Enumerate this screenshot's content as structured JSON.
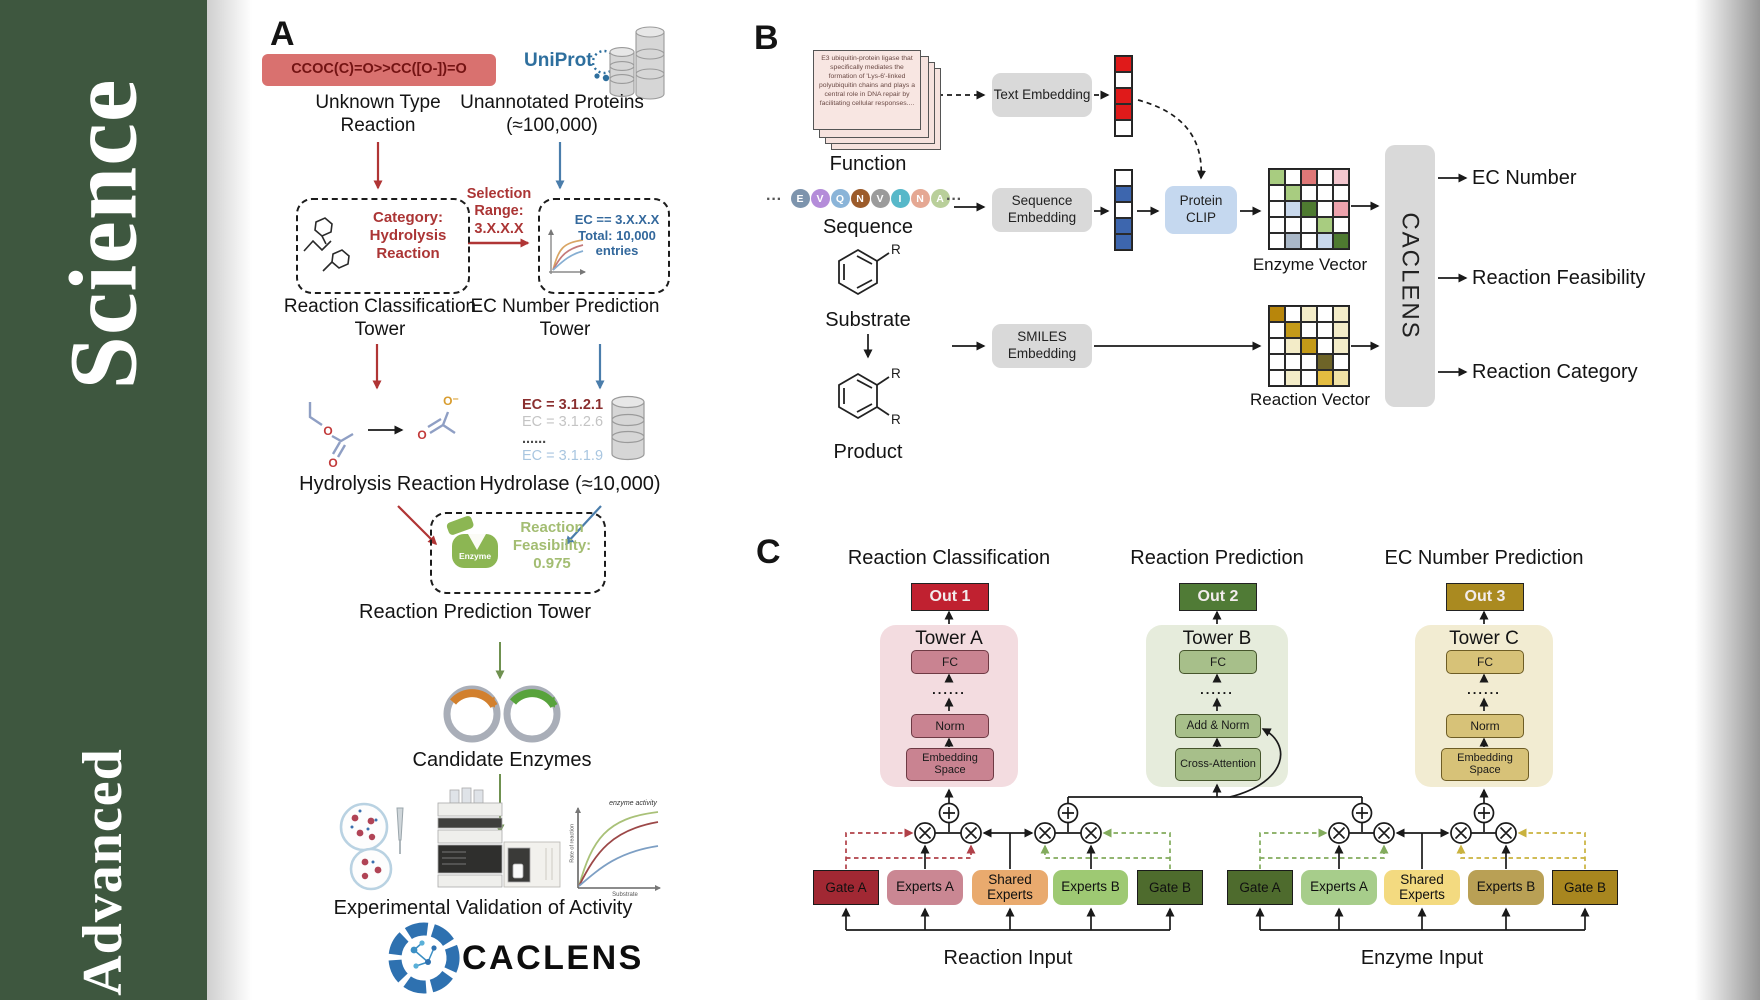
{
  "sidebar": {
    "word_top": "Science",
    "word_bottom": "Advanced"
  },
  "panelA": {
    "label": "A",
    "smiles": "CCOC(C)=O>>CC([O-])=O",
    "unknown_reaction": "Unknown Type Reaction",
    "uniprot": "UniProt",
    "unannotated": "Unannotated Proteins (≈100,000)",
    "category_lines": [
      "Category:",
      "Hydrolysis",
      "Reaction"
    ],
    "selection_lines": [
      "Selection",
      "Range:",
      "3.X.X.X"
    ],
    "ec_box_lines": [
      "EC == 3.X.X.X",
      "Total: 10,000",
      "entries"
    ],
    "classification_tower": "Reaction Classification Tower",
    "ec_tower": "EC Number Prediction Tower",
    "ec_list": [
      {
        "text": "EC = 3.1.2.1",
        "color": "#8a2f2f",
        "bold": true
      },
      {
        "text": "EC = 3.1.2.6",
        "color": "#c4c4c4",
        "bold": false
      },
      {
        "text": "......",
        "color": "#4a4a4a",
        "bold": true
      },
      {
        "text": "EC = 3.1.1.9",
        "color": "#a9c6e0",
        "bold": false
      }
    ],
    "hydrolysis_reaction": "Hydrolysis Reaction",
    "hydrolase": "Hydrolase (≈10,000)",
    "o": "O",
    "o_minus": "O⁻",
    "enzyme_label": "Enzyme",
    "feasibility_lines": [
      "Reaction",
      "Feasibility:",
      "0.975"
    ],
    "prediction_tower": "Reaction Prediction Tower",
    "candidate_enzymes": "Candidate Enzymes",
    "validation": "Experimental Validation of Activity",
    "plot": {
      "annotation": "enzyme activity",
      "ylabel": "Rate of reaction",
      "xlabel": "Substrate"
    },
    "logo_text": "CACLENS"
  },
  "panelB": {
    "label": "B",
    "function_card": "E3 ubiquitin-protein ligase that specifically mediates the formation of 'Lys-6'-linked polyubiquitin chains and plays a central role in DNA repair by facilitating cellular responses....",
    "function": "Function",
    "ellipsis": "···",
    "sequence_tokens": [
      {
        "letter": "E",
        "color": "#7d94ad"
      },
      {
        "letter": "V",
        "color": "#b48cd9"
      },
      {
        "letter": "Q",
        "color": "#8ab4d8"
      },
      {
        "letter": "N",
        "color": "#9c5b2a"
      },
      {
        "letter": "V",
        "color": "#9b9b9b"
      },
      {
        "letter": "I",
        "color": "#57b8c9"
      },
      {
        "letter": "N",
        "color": "#e5a893"
      },
      {
        "letter": "A",
        "color": "#b9cf9a"
      }
    ],
    "sequence": "Sequence",
    "substrate": "Substrate",
    "product": "Product",
    "r": "R",
    "text_embedding": "Text Embedding",
    "sequence_embedding": "Sequence Embedding",
    "smiles_embedding": "SMILES Embedding",
    "protein_clip": "Protein CLIP",
    "text_vector": [
      "#e01a1a",
      "#ffffff",
      "#e01a1a",
      "#e01a1a",
      "#ffffff"
    ],
    "sequence_vector": [
      "#ffffff",
      "#3d66ae",
      "#ffffff",
      "#3d66ae",
      "#3d66ae"
    ],
    "enzyme_vector_label": "Enzyme Vector",
    "reaction_vector_label": "Reaction Vector",
    "enzyme_vector_grid": [
      [
        "#a8cc80",
        "#ffffff",
        "#e07878",
        "#ffffff",
        "#f3c6ce"
      ],
      [
        "#ffffff",
        "#a8cc80",
        "#ffffff",
        "#ffffff",
        "#ffffff"
      ],
      [
        "#ffffff",
        "#c8d8ec",
        "#4e7a30",
        "#ffffff",
        "#eda3ad"
      ],
      [
        "#ffffff",
        "#ffffff",
        "#ffffff",
        "#a8cc80",
        "#ffffff"
      ],
      [
        "#ffffff",
        "#aab8c8",
        "#ffffff",
        "#c8d8ec",
        "#4e7a30"
      ]
    ],
    "reaction_vector_grid": [
      [
        "#b8860b",
        "#ffffff",
        "#f3ecc8",
        "#ffffff",
        "#f3ecc8"
      ],
      [
        "#ffffff",
        "#c49a18",
        "#ffffff",
        "#ffffff",
        "#f3ecc8"
      ],
      [
        "#ffffff",
        "#f3ecc8",
        "#c49a18",
        "#ffffff",
        "#f3ecc8"
      ],
      [
        "#ffffff",
        "#ffffff",
        "#ffffff",
        "#6e6428",
        "#ffffff"
      ],
      [
        "#ffffff",
        "#f3ecc8",
        "#ffffff",
        "#e3bc40",
        "#f0e2a6"
      ]
    ],
    "caclens": "CACLENS",
    "outputs": [
      "EC Number",
      "Reaction Feasibility",
      "Reaction Category"
    ]
  },
  "panelC": {
    "label": "C",
    "dots": "......",
    "towers": [
      {
        "title": "Reaction Classification",
        "out": "Out 1",
        "name": "Tower A",
        "fc": "FC",
        "l3": "Norm",
        "l4": "Embedding Space"
      },
      {
        "title": "Reaction Prediction",
        "out": "Out 2",
        "name": "Tower B",
        "fc": "FC",
        "l3": "Add & Norm",
        "l4": "Cross-Attention"
      },
      {
        "title": "EC Number Prediction",
        "out": "Out 3",
        "name": "Tower C",
        "fc": "FC",
        "l3": "Norm",
        "l4": "Embedding Space"
      }
    ],
    "groups": [
      {
        "input": "Reaction Input",
        "gate_a": "Gate A",
        "experts_a": "Experts A",
        "shared": "Shared Experts",
        "experts_b": "Experts B",
        "gate_b": "Gate B"
      },
      {
        "input": "Enzyme Input",
        "gate_a": "Gate A",
        "experts_a": "Experts A",
        "shared": "Shared Experts",
        "experts_b": "Experts B",
        "gate_b": "Gate B"
      }
    ]
  },
  "colors": {
    "sidebar_green": "#3e573f",
    "smiles_box": "#d9716f",
    "accent_red": "#ab3535",
    "accent_blue": "#33689c",
    "accent_green": "#6f9150",
    "embedding_box_gray": "#d9d9d9",
    "protein_clip_blue": "#c5d8ef",
    "out1": "#c02130",
    "out2": "#507b36",
    "out3": "#aa8a20",
    "tower_a_bg": "#f3dce0",
    "tower_b_bg": "#e6ecdc",
    "tower_c_bg": "#f2ecd2",
    "tower_a_box": "#c98391",
    "tower_b_box": "#a7bf8a",
    "tower_c_box": "#d7c278",
    "gate_a_reaction": "#a12833",
    "experts_a_reaction": "#ca8793",
    "shared_reaction": "#e9aa6e",
    "experts_b_reaction": "#9ec973",
    "gate_b_reaction": "#4e6b2d",
    "gate_a_enzyme": "#4e6b2d",
    "experts_a_enzyme": "#a7cd8b",
    "shared_enzyme": "#f3da80",
    "experts_b_enzyme": "#b9a055",
    "gate_b_enzyme": "#a8861f"
  }
}
